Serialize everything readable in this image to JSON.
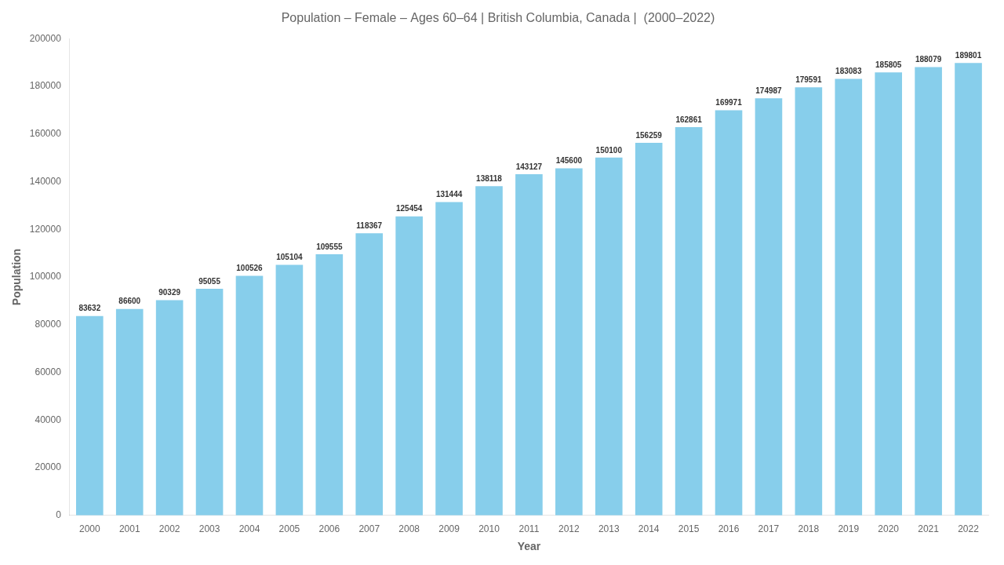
{
  "chart_data": {
    "type": "bar",
    "title": "Population – Female – Ages 60–64 | British Columbia, Canada |  (2000–2022)",
    "xlabel": "Year",
    "ylabel": "Population",
    "categories": [
      "2000",
      "2001",
      "2002",
      "2003",
      "2004",
      "2005",
      "2006",
      "2007",
      "2008",
      "2009",
      "2010",
      "2011",
      "2012",
      "2013",
      "2014",
      "2015",
      "2016",
      "2017",
      "2018",
      "2019",
      "2020",
      "2021",
      "2022"
    ],
    "values": [
      83632,
      86600,
      90329,
      95055,
      100526,
      105104,
      109555,
      118367,
      125454,
      131444,
      138118,
      143127,
      145600,
      150100,
      156259,
      162861,
      169971,
      174987,
      179591,
      183083,
      185805,
      188079,
      189801
    ],
    "color": "#87CEEB",
    "ylim": [
      0,
      200000
    ],
    "yticks": [
      0,
      20000,
      40000,
      60000,
      80000,
      100000,
      120000,
      140000,
      160000,
      180000,
      200000
    ],
    "grid": false,
    "data_labels": true
  }
}
